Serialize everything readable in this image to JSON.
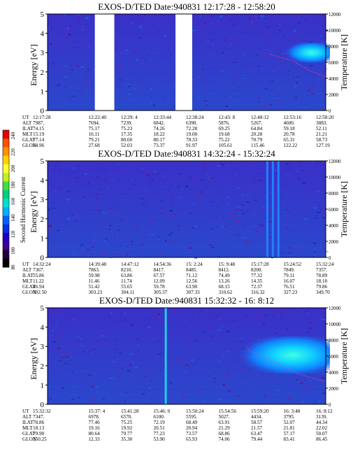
{
  "colorbar": {
    "label": "Second Harmonic Current",
    "ticks": [
      "240",
      "220",
      "200",
      "180",
      "160",
      "140",
      "120",
      "100",
      "80"
    ],
    "colors": [
      "#e00000",
      "#ff5000",
      "#ff9000",
      "#ffd000",
      "#ffff30",
      "#c0f020",
      "#40e040",
      "#00d080",
      "#00e0d0",
      "#00b0ff",
      "#0060ff",
      "#0030e0",
      "#2000c0",
      "#400090",
      "#200040",
      "#000000"
    ]
  },
  "chart_data": [
    {
      "type": "heatmap",
      "title": "EXOS-D/TED   Date:940831   12:17:28 - 12:58:20",
      "ylabel": "Energy [eV]",
      "ylabel_right": "Temperature [K]",
      "ylim": [
        0,
        5
      ],
      "yticks": [
        "0",
        "1",
        "2",
        "3",
        "4",
        "5"
      ],
      "ylim_right": [
        0,
        12000
      ],
      "yticks_right": [
        "0",
        "2000",
        "4000",
        "6000",
        "8000",
        "10000",
        "12000"
      ],
      "data_gaps": [
        [
          0.17,
          0.24
        ],
        [
          0.46,
          0.52
        ]
      ],
      "hotspot": {
        "x": [
          0.85,
          1.0
        ],
        "y_eV": [
          2.7,
          3.3
        ]
      },
      "temperature_trace": [
        [
          0.8,
          7000
        ],
        [
          0.88,
          6200
        ],
        [
          0.94,
          5000
        ],
        [
          1.0,
          4200
        ]
      ],
      "ut_rows": [
        {
          "label": "UT",
          "values": [
            "12:17:28",
            "12:22:40",
            "12:29: 4",
            "12:33:44",
            "12:38:24",
            "12:43: 8",
            "12:48:12",
            "12:53:16",
            "12:58:20"
          ]
        },
        {
          "label": "ALT",
          "values": [
            "7987.",
            "7694.",
            "7239.",
            "6842.",
            "6390.",
            "5876.",
            "5267.",
            "4600.",
            "3883."
          ]
        },
        {
          "label": "ILAT",
          "values": [
            "74.15",
            "75.17",
            "75.23",
            "74.26",
            "72.28",
            "69.25",
            "64.84",
            "59.18",
            "52.11"
          ]
        },
        {
          "label": "MLT",
          "values": [
            "15.19",
            "16.11",
            "17.35",
            "18.22",
            "19.00",
            "19.68",
            "20.28",
            "20.78",
            "21.21"
          ]
        },
        {
          "label": "GLAT",
          "values": [
            "77.14",
            "79.21",
            "80.60",
            "80.17",
            "78.33",
            "75.22",
            "70.79",
            "65.31",
            "58.73"
          ]
        },
        {
          "label": "GLON",
          "values": [
            "14.96",
            "27.68",
            "52.03",
            "73.37",
            "91.97",
            "105.61",
            "115.46",
            "122.22",
            "127.19"
          ]
        }
      ]
    },
    {
      "type": "heatmap",
      "title": "EXOS-D/TED   Date:940831   14:32:24 - 15:32:24",
      "ylabel": "Energy [eV]",
      "ylabel_right": "Temperature [K]",
      "ylim": [
        0,
        5
      ],
      "yticks": [
        "0",
        "1",
        "2",
        "3",
        "4",
        "5"
      ],
      "ylim_right": [
        0,
        12000
      ],
      "yticks_right": [
        "0",
        "2000",
        "4000",
        "6000",
        "8000",
        "10000",
        "12000"
      ],
      "bright_columns": [
        0.79,
        0.81,
        0.83
      ],
      "ut_rows": [
        {
          "label": "UT",
          "values": [
            "14:32:24",
            "14:39:48",
            "14:47:12",
            "14:54:36",
            "15: 2:24",
            "15: 9:48",
            "15:17:28",
            "15:24:52",
            "15:32:24"
          ]
        },
        {
          "label": "ALT",
          "values": [
            "7367.",
            "7863.",
            "8210.",
            "8417.",
            "8485.",
            "8412.",
            "8200.",
            "7849.",
            "7357."
          ]
        },
        {
          "label": "ILAT",
          "values": [
            "55.86",
            "59.98",
            "63.86",
            "67.57",
            "71.12",
            "74.49",
            "77.32",
            "79.11",
            "78.89"
          ]
        },
        {
          "label": "MLT",
          "values": [
            "11.22",
            "11.46",
            "11.74",
            "12.09",
            "12.56",
            "13.26",
            "14.35",
            "16.07",
            "18.10"
          ]
        },
        {
          "label": "GLAT",
          "values": [
            "46.94",
            "51.42",
            "55.65",
            "59.78",
            "63.90",
            "68.15",
            "72.37",
            "76.51",
            "79.86"
          ]
        },
        {
          "label": "GLON",
          "values": [
            "302.50",
            "303.23",
            "304.11",
            "305.37",
            "307.33",
            "310.62",
            "316.32",
            "327.23",
            "349.70"
          ]
        }
      ]
    },
    {
      "type": "heatmap",
      "title": "EXOS-D/TED   Date:940831   15:32:32 - 16: 8:12",
      "ylabel": "Energy [eV]",
      "ylabel_right": "Temperature [K]",
      "ylim": [
        0,
        5
      ],
      "yticks": [
        "0",
        "1",
        "2",
        "3",
        "4",
        "5"
      ],
      "ylim_right": [
        0,
        12000
      ],
      "yticks_right": [
        "0",
        "2000",
        "4000",
        "6000",
        "8000",
        "10000",
        "12000"
      ],
      "bright_columns": [
        0.425
      ],
      "hotspot": {
        "x": [
          0.68,
          1.0
        ],
        "y_eV": [
          1.8,
          3.3
        ]
      },
      "temperature_trace": [
        [
          0.72,
          6800
        ],
        [
          0.82,
          5200
        ],
        [
          0.9,
          3800
        ],
        [
          1.0,
          2800
        ]
      ],
      "ut_rows": [
        {
          "label": "UT",
          "values": [
            "15:32:32",
            "15:37: 4",
            "15:41:28",
            "15:46: 0",
            "15:50:24",
            "15:54:56",
            "15:59:20",
            "16: 3:48",
            "16: 8:12"
          ]
        },
        {
          "label": "ALT",
          "values": [
            "7347.",
            "6978.",
            "6570.",
            "6100.",
            "5595.",
            "5027.",
            "4434.",
            "3795.",
            "3139."
          ]
        },
        {
          "label": "ILAT",
          "values": [
            "78.86",
            "77.46",
            "75.25",
            "72.19",
            "68.49",
            "63.91",
            "58.57",
            "52.07",
            "44.34"
          ]
        },
        {
          "label": "MLT",
          "values": [
            "18.13",
            "19.16",
            "19.92",
            "20.51",
            "20.94",
            "21.29",
            "21.57",
            "21.81",
            "22.02"
          ]
        },
        {
          "label": "GLAT",
          "values": [
            "79.90",
            "80.64",
            "79.77",
            "77.23",
            "73.57",
            "68.86",
            "63.47",
            "57.17",
            "50.07"
          ]
        },
        {
          "label": "GLON",
          "values": [
            "350.25",
            "12.33",
            "35.30",
            "53.90",
            "65.93",
            "74.06",
            "79.44",
            "83.41",
            "86.45"
          ]
        }
      ]
    }
  ]
}
